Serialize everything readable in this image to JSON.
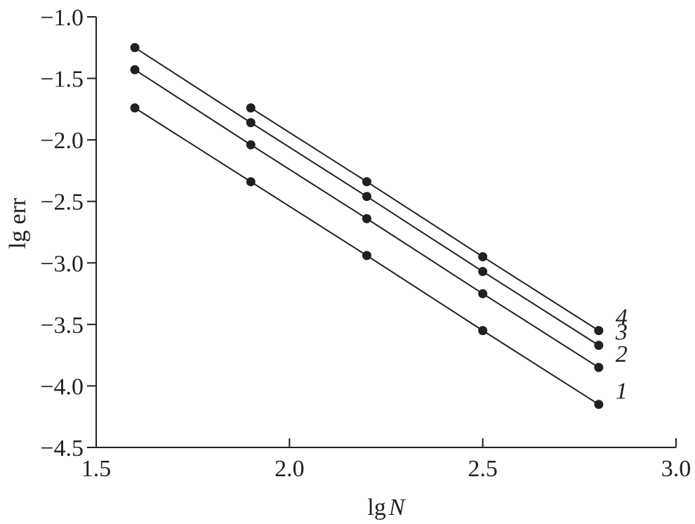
{
  "chart_data": {
    "type": "line",
    "title": "",
    "xlabel_prefix": "lg",
    "xlabel_var": "N",
    "ylabel": "lg err",
    "xlim": [
      1.5,
      3.0
    ],
    "ylim": [
      -4.5,
      -1.0
    ],
    "xticks": [
      1.5,
      2.0,
      2.5,
      3.0
    ],
    "xtick_labels": [
      "1.5",
      "2.0",
      "2.5",
      "3.0"
    ],
    "yticks": [
      -1.0,
      -1.5,
      -2.0,
      -2.5,
      -3.0,
      -3.5,
      -4.0,
      -4.5
    ],
    "ytick_labels": [
      "−1.0",
      "−1.5",
      "−2.0",
      "−2.5",
      "−3.0",
      "−3.5",
      "−4.0",
      "−4.5"
    ],
    "grid": false,
    "line_color": "#231f20",
    "series": [
      {
        "label": "1",
        "x": [
          1.6,
          1.9,
          2.2,
          2.5,
          2.8
        ],
        "y": [
          -1.74,
          -2.34,
          -2.94,
          -3.55,
          -4.15
        ]
      },
      {
        "label": "2",
        "x": [
          1.6,
          1.9,
          2.2,
          2.5,
          2.8
        ],
        "y": [
          -1.43,
          -2.04,
          -2.64,
          -3.25,
          -3.85
        ]
      },
      {
        "label": "3",
        "x": [
          1.6,
          1.9,
          2.2,
          2.5,
          2.8
        ],
        "y": [
          -1.25,
          -1.86,
          -2.46,
          -3.07,
          -3.67
        ]
      },
      {
        "label": "4",
        "x": [
          1.9,
          2.2,
          2.5,
          2.8
        ],
        "y": [
          -1.74,
          -2.34,
          -2.95,
          -3.55
        ]
      }
    ]
  }
}
